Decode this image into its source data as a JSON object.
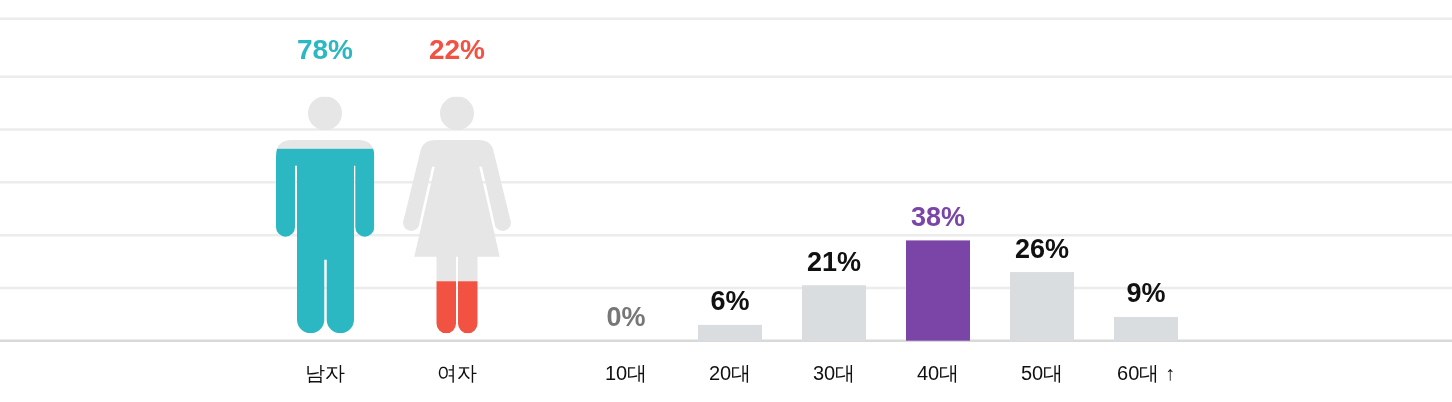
{
  "chart_data": [
    {
      "type": "bar",
      "categories": [
        "남자",
        "여자"
      ],
      "values": [
        78,
        22
      ],
      "colors": [
        "#2cb8c2",
        "#f15241"
      ],
      "value_labels": [
        "78%",
        "22%"
      ]
    },
    {
      "type": "bar",
      "categories": [
        "10대",
        "20대",
        "30대",
        "40대",
        "50대",
        "60대 ↑"
      ],
      "values": [
        0,
        6,
        21,
        38,
        26,
        9
      ],
      "colors": [
        "#d9dde0",
        "#d9dde0",
        "#d9dde0",
        "#7b45a8",
        "#d9dde0",
        "#d9dde0"
      ],
      "value_labels": [
        "0%",
        "6%",
        "21%",
        "38%",
        "26%",
        "9%"
      ],
      "ylim": [
        0,
        122
      ],
      "yticks": [
        {
          "value": 20,
          "label": null
        },
        {
          "value": 40,
          "label": null
        },
        {
          "value": 60,
          "label": null
        },
        {
          "value": 80,
          "label": null
        },
        {
          "value": 100,
          "label": null
        }
      ],
      "grid": "y"
    }
  ]
}
